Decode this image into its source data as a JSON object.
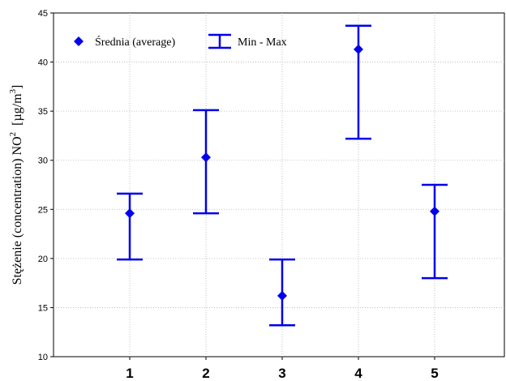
{
  "chart_data": {
    "type": "scatter",
    "categories": [
      "1",
      "2",
      "3",
      "4",
      "5"
    ],
    "series": [
      {
        "name": "Średnia (average)",
        "values": [
          24.6,
          30.3,
          16.2,
          41.3,
          24.8
        ]
      },
      {
        "name": "Min - Max",
        "min": [
          19.9,
          24.6,
          13.2,
          32.2,
          18.0
        ],
        "max": [
          26.6,
          35.1,
          19.9,
          43.7,
          27.5
        ]
      }
    ],
    "ylabel": {
      "main": "Stężenie (concentration) NO",
      "sup": "2",
      "unit_prefix": "  [µg/m",
      "unit_sup": "3",
      "unit_suffix": "]"
    },
    "ylim": [
      10,
      45
    ],
    "yticks": [
      "10",
      "15",
      "20",
      "25",
      "30",
      "35",
      "40",
      "45"
    ],
    "grid": true,
    "legend_position": "top-left",
    "color": "#0000ee"
  }
}
